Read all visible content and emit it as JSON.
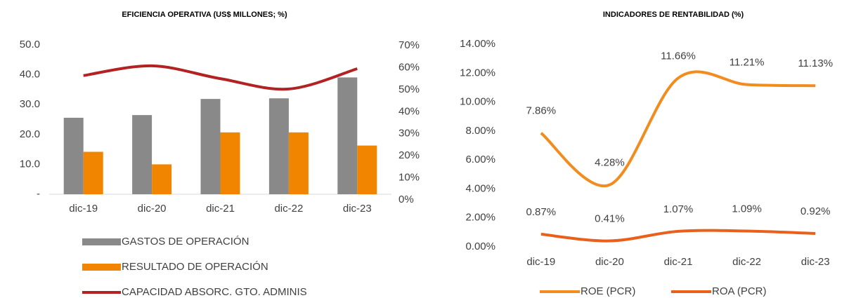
{
  "chart_data": [
    {
      "type": "bar",
      "title": "EFICIENCIA OPERATIVA (US$ MILLONES; %)",
      "categories": [
        "dic-19",
        "dic-20",
        "dic-21",
        "dic-22",
        "dic-23"
      ],
      "series": [
        {
          "name": "GASTOS DE OPERACIÓN",
          "type": "bar",
          "color": "#898989",
          "values": [
            25.6,
            26.5,
            31.9,
            32.1,
            39.1
          ]
        },
        {
          "name": "RESULTADO DE OPERACIÓN",
          "type": "bar",
          "color": "#f28500",
          "values": [
            14.2,
            10.0,
            20.7,
            20.7,
            16.3
          ]
        },
        {
          "name": "CAPACIDAD ABSORC. GTO. ADMINIS",
          "type": "line",
          "axis": "y2",
          "color": "#b22222",
          "values": [
            56.4,
            60.8,
            55.0,
            50.3,
            59.5
          ]
        }
      ],
      "ylim": [
        0,
        50
      ],
      "yticks": [
        {
          "value": 0,
          "label": "-"
        },
        {
          "value": 10,
          "label": "10.0"
        },
        {
          "value": 20,
          "label": "20.0"
        },
        {
          "value": 30,
          "label": "30.0"
        },
        {
          "value": 40,
          "label": "40.0"
        },
        {
          "value": 50,
          "label": "50.0"
        }
      ],
      "y2lim": [
        0,
        70
      ],
      "y2ticks": [
        {
          "value": 0,
          "label": "0%"
        },
        {
          "value": 10,
          "label": "10%"
        },
        {
          "value": 20,
          "label": "20%"
        },
        {
          "value": 30,
          "label": "30%"
        },
        {
          "value": 40,
          "label": "40%"
        },
        {
          "value": 50,
          "label": "50%"
        },
        {
          "value": 60,
          "label": "60%"
        },
        {
          "value": 70,
          "label": "70%"
        }
      ],
      "legend": "bottom"
    },
    {
      "type": "line",
      "title": "INDICADORES DE RENTABILIDAD (%)",
      "categories": [
        "dic-19",
        "dic-20",
        "dic-21",
        "dic-22",
        "dic-23"
      ],
      "series": [
        {
          "name": "ROE (PCR)",
          "color": "#f28c1f",
          "values": [
            7.86,
            4.28,
            11.66,
            11.21,
            11.13
          ],
          "value_labels": [
            "7.86%",
            "4.28%",
            "11.66%",
            "11.21%",
            "11.13%"
          ]
        },
        {
          "name": "ROA (PCR)",
          "color": "#e8601c",
          "values": [
            0.87,
            0.41,
            1.07,
            1.09,
            0.92
          ],
          "value_labels": [
            "0.87%",
            "0.41%",
            "1.07%",
            "1.09%",
            "0.92%"
          ]
        }
      ],
      "ylim": [
        0,
        14
      ],
      "yticks": [
        {
          "value": 0,
          "label": "0.00%"
        },
        {
          "value": 2,
          "label": "2.00%"
        },
        {
          "value": 4,
          "label": "4.00%"
        },
        {
          "value": 6,
          "label": "6.00%"
        },
        {
          "value": 8,
          "label": "8.00%"
        },
        {
          "value": 10,
          "label": "10.00%"
        },
        {
          "value": 12,
          "label": "12.00%"
        },
        {
          "value": 14,
          "label": "14.00%"
        }
      ],
      "legend": "bottom"
    }
  ]
}
